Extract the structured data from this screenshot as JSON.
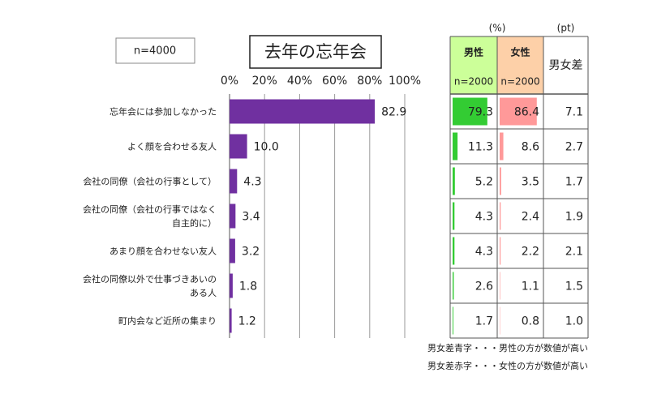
{
  "chart_data": {
    "type": "bar",
    "orientation": "horizontal",
    "title": "去年の忘年会",
    "sample_label": "n=4000",
    "categories": [
      "忘年会には参加しなかった",
      "よく顔を合わせる友人",
      "会社の同僚（会社の行事として）",
      "会社の同僚（会社の行事ではなく\n自主的に）",
      "あまり顔を合わせない友人",
      "会社の同僚以外で仕事づきあいの\nある人",
      "町内会など近所の集まり"
    ],
    "values": [
      82.9,
      10.0,
      4.3,
      3.4,
      3.2,
      1.8,
      1.2
    ],
    "value_labels": [
      "82.9",
      "10.0",
      "4.3",
      "3.4",
      "3.2",
      "1.8",
      "1.2"
    ],
    "color": "#7030a0",
    "xlim": [
      0,
      100
    ],
    "xticks": [
      {
        "value": 0,
        "label": "0%"
      },
      {
        "value": 20,
        "label": "20%"
      },
      {
        "value": 40,
        "label": "40%"
      },
      {
        "value": 60,
        "label": "60%"
      },
      {
        "value": 80,
        "label": "80%"
      },
      {
        "value": 100,
        "label": "100%"
      }
    ],
    "grid": true
  },
  "table": {
    "unit_left": "(%)",
    "unit_right": "(pt)",
    "xlim": [
      0,
      100
    ],
    "columns": [
      {
        "name": "男性",
        "n": "n=2000",
        "header_color": "#ccff99",
        "color": "#33cc33",
        "values": [
          79.3,
          11.3,
          5.2,
          4.3,
          4.3,
          2.6,
          1.7
        ]
      },
      {
        "name": "女性",
        "n": "n=2000",
        "header_color": "#fdd0a8",
        "color": "#ff9999",
        "values": [
          86.4,
          8.6,
          3.5,
          2.4,
          2.2,
          1.1,
          0.8
        ]
      }
    ],
    "diff": {
      "name": "男女差",
      "values": [
        7.1,
        2.7,
        1.7,
        1.9,
        2.1,
        1.5,
        1.0
      ],
      "value_labels": [
        "7.1",
        "2.7",
        "1.7",
        "1.9",
        "2.1",
        "1.5",
        "1.0"
      ],
      "colors": [
        "#e02020",
        "#1a70c0",
        "#1a70c0",
        "#1a70c0",
        "#1a70c0",
        "#1a70c0",
        "#1a70c0"
      ]
    },
    "notes": [
      {
        "text": "男女差青字・・・男性の方が数値が高い",
        "color": "#1a70c0"
      },
      {
        "text": "男女差赤字・・・女性の方が数値が高い",
        "color": "#e02020"
      }
    ]
  }
}
